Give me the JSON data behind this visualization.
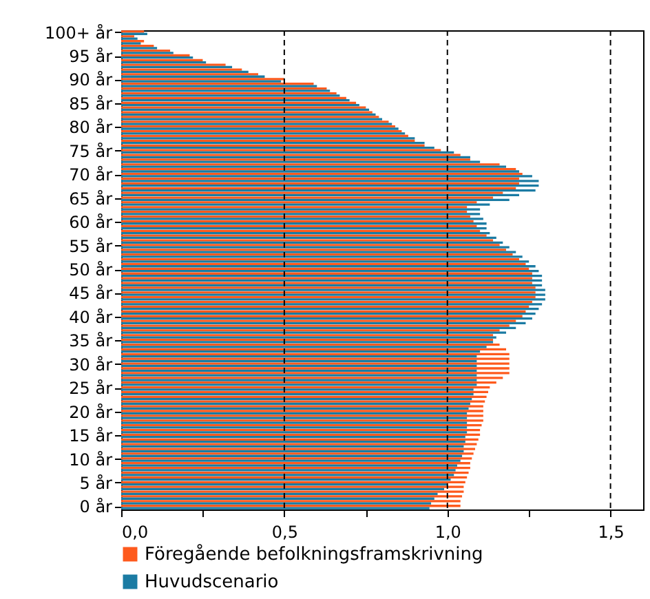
{
  "chart_data": {
    "type": "bar",
    "orientation": "horizontal",
    "categories": [
      "100+ år",
      null,
      null,
      null,
      null,
      "95 år",
      null,
      null,
      null,
      null,
      "90 år",
      null,
      null,
      null,
      null,
      "85 år",
      null,
      null,
      null,
      null,
      "80 år",
      null,
      null,
      null,
      null,
      "75 år",
      null,
      null,
      null,
      null,
      "70 år",
      null,
      null,
      null,
      null,
      "65 år",
      null,
      null,
      null,
      null,
      "60 år",
      null,
      null,
      null,
      null,
      "55 år",
      null,
      null,
      null,
      null,
      "50 år",
      null,
      null,
      null,
      null,
      "45 år",
      null,
      null,
      null,
      null,
      "40 år",
      null,
      null,
      null,
      null,
      "35 år",
      null,
      null,
      null,
      null,
      "30 år",
      null,
      null,
      null,
      null,
      "25 år",
      null,
      null,
      null,
      null,
      "20 år",
      null,
      null,
      null,
      null,
      "15 år",
      null,
      null,
      null,
      null,
      "10 år",
      null,
      null,
      null,
      null,
      "5 år",
      null,
      null,
      null,
      null,
      "0 år"
    ],
    "series": [
      {
        "name": "Föregående befolkningsframskrivning",
        "color": "#fe5a1d",
        "values": [
          0.07,
          0.04,
          0.07,
          0.1,
          0.15,
          0.21,
          0.25,
          0.32,
          0.37,
          0.42,
          0.5,
          0.59,
          0.63,
          0.66,
          0.69,
          0.72,
          0.75,
          0.77,
          0.79,
          0.82,
          0.84,
          0.86,
          0.88,
          0.9,
          0.93,
          0.98,
          1.04,
          1.07,
          1.16,
          1.21,
          1.23,
          1.22,
          1.22,
          1.21,
          1.17,
          1.14,
          1.09,
          1.06,
          1.06,
          1.07,
          1.08,
          1.09,
          1.1,
          1.12,
          1.14,
          1.16,
          1.18,
          1.2,
          1.22,
          1.24,
          1.25,
          1.26,
          1.26,
          1.26,
          1.27,
          1.27,
          1.27,
          1.26,
          1.25,
          1.24,
          1.23,
          1.21,
          1.19,
          1.16,
          1.14,
          1.14,
          1.16,
          1.18,
          1.19,
          1.19,
          1.19,
          1.19,
          1.19,
          1.17,
          1.15,
          1.13,
          1.125,
          1.12,
          1.115,
          1.11,
          1.11,
          1.11,
          1.11,
          1.105,
          1.1,
          1.1,
          1.095,
          1.09,
          1.085,
          1.08,
          1.075,
          1.07,
          1.07,
          1.065,
          1.06,
          1.055,
          1.05,
          1.05,
          1.045,
          1.04,
          1.04
        ]
      },
      {
        "name": "Huvudscenario",
        "color": "#1b7ba3",
        "values": [
          0.08,
          0.05,
          0.06,
          0.11,
          0.16,
          0.22,
          0.26,
          0.34,
          0.39,
          0.44,
          0.49,
          0.6,
          0.64,
          0.67,
          0.7,
          0.73,
          0.76,
          0.78,
          0.8,
          0.83,
          0.85,
          0.87,
          0.9,
          0.93,
          0.96,
          1.02,
          1.07,
          1.1,
          1.18,
          1.22,
          1.26,
          1.28,
          1.28,
          1.27,
          1.22,
          1.19,
          1.13,
          1.1,
          1.1,
          1.11,
          1.12,
          1.12,
          1.13,
          1.15,
          1.17,
          1.19,
          1.21,
          1.23,
          1.25,
          1.27,
          1.28,
          1.29,
          1.29,
          1.29,
          1.3,
          1.3,
          1.3,
          1.29,
          1.28,
          1.27,
          1.26,
          1.24,
          1.21,
          1.18,
          1.15,
          1.14,
          1.12,
          1.1,
          1.09,
          1.09,
          1.09,
          1.09,
          1.09,
          1.09,
          1.09,
          1.08,
          1.08,
          1.075,
          1.07,
          1.065,
          1.06,
          1.06,
          1.06,
          1.06,
          1.06,
          1.055,
          1.055,
          1.05,
          1.05,
          1.045,
          1.04,
          1.03,
          1.025,
          1.02,
          1.01,
          1.0,
          0.99,
          0.97,
          0.96,
          0.95,
          0.945
        ]
      }
    ],
    "xlim": [
      0,
      1.6
    ],
    "xticks": [
      {
        "value": 0,
        "label": "0,0"
      },
      {
        "value": 0.25,
        "label": null
      },
      {
        "value": 0.5,
        "label": "0,5"
      },
      {
        "value": 0.75,
        "label": null
      },
      {
        "value": 1,
        "label": "1,0"
      },
      {
        "value": 1.25,
        "label": null
      },
      {
        "value": 1.5,
        "label": "1,5"
      }
    ],
    "grid": "x",
    "legend": "bottom"
  }
}
